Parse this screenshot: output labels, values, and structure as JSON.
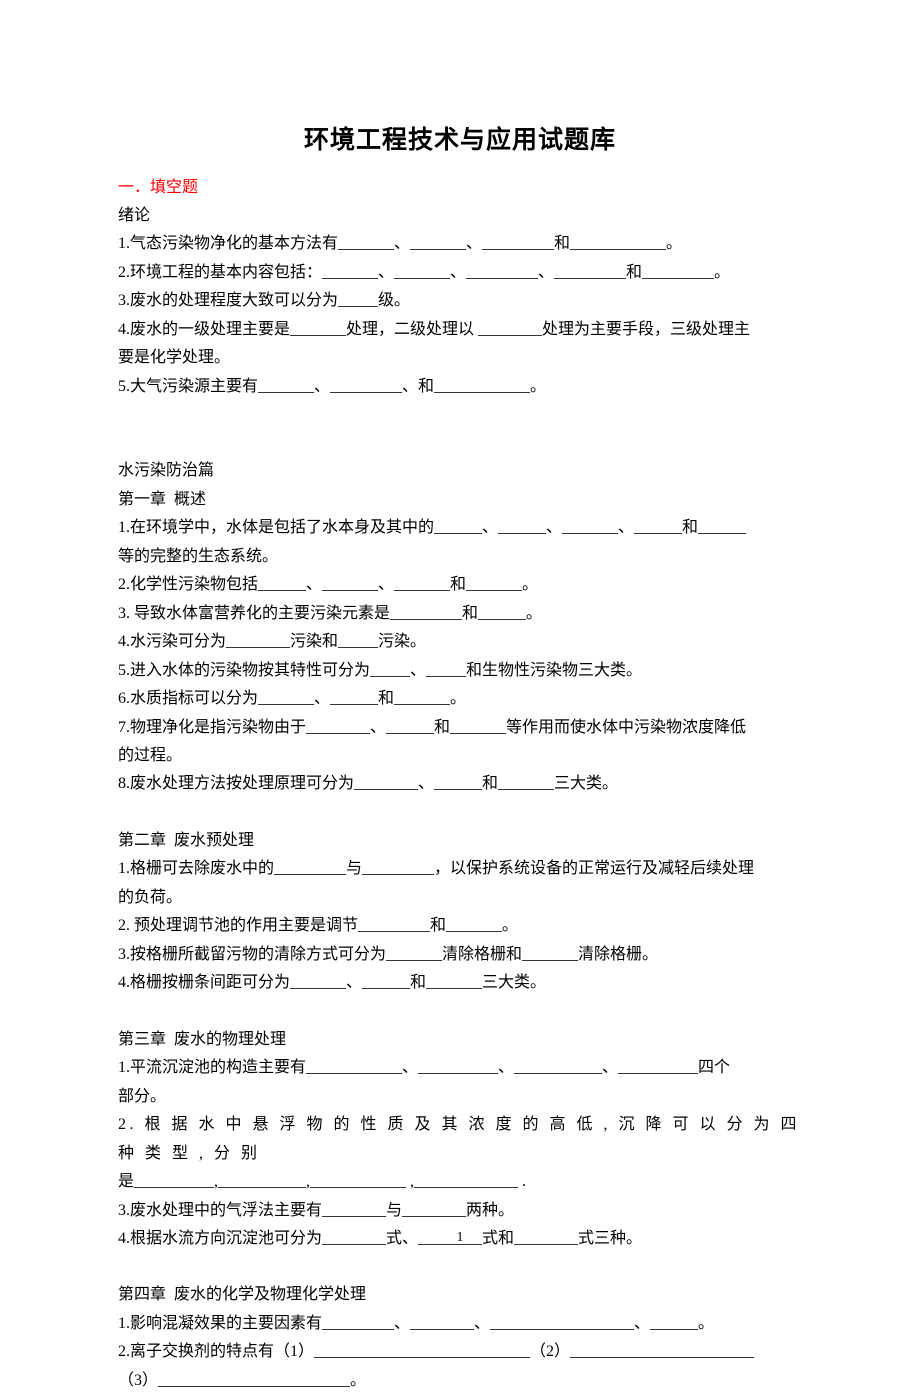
{
  "title": "环境工程技术与应用试题库",
  "section1_label": "一．填空题",
  "intro_heading": "绪论",
  "intro": {
    "q1": "1.气态污染物净化的基本方法有_______、_______、_________和____________。",
    "q2": "2.环境工程的基本内容包括：_______、_______、_________、_________和_________。",
    "q3": "3.废水的处理程度大致可以分为_____级。",
    "q4a": "4.废水的一级处理主要是_______处理，二级处理以 ________处理为主要手段，三级处理主",
    "q4b": "要是化学处理。",
    "q5": "5.大气污染源主要有_______、_________、和____________。"
  },
  "water_heading": "水污染防治篇",
  "ch1_heading": "第一章  概述",
  "ch1": {
    "q1a": "1.在环境学中，水体是包括了水本身及其中的______、______、_______、______和______",
    "q1b": "等的完整的生态系统。",
    "q2": "2.化学性污染物包括______、_______、_______和_______。",
    "q3": "3. 导致水体富营养化的主要污染元素是_________和______。",
    "q4": "4.水污染可分为________污染和_____污染。",
    "q5": "5.进入水体的污染物按其特性可分为_____、_____和生物性污染物三大类。",
    "q6": "6.水质指标可以分为_______、______和_______。",
    "q7a": "7.物理净化是指污染物由于________、______和_______等作用而使水体中污染物浓度降低",
    "q7b": "的过程。",
    "q8": "8.废水处理方法按处理原理可分为________、______和_______三大类。"
  },
  "ch2_heading": "第二章  废水预处理",
  "ch2": {
    "q1a": "1.格栅可去除废水中的_________与_________，以保护系统设备的正常运行及减轻后续处理",
    "q1b": "的负荷。",
    "q2": "2. 预处理调节池的作用主要是调节_________和_______。",
    "q3": "3.按格栅所截留污物的清除方式可分为_______清除格栅和_______清除格栅。",
    "q4": "4.格栅按栅条间距可分为_______、______和_______三大类。"
  },
  "ch3_heading": "第三章  废水的物理处理",
  "ch3": {
    "q1a": "1.平流沉淀池的构造主要有____________、__________、___________、__________四个",
    "q1b": "部分。",
    "q2a": "2. 根 据 水 中 悬 浮 物 的 性 质 及 其 浓 度 的 高 低 , 沉 降 可 以 分 为 四 种 类 型 , 分 别",
    "q2b": "是__________,___________,____________ ,_____________ .",
    "q3": "3.废水处理中的气浮法主要有________与________两种。",
    "q4": "4.根据水流方向沉淀池可分为________式、________式和________式三种。"
  },
  "ch4_heading": "第四章  废水的化学及物理化学处理",
  "ch4": {
    "q1": "1.影响混凝效果的主要因素有_________、________、__________________、______。",
    "q2": "2.离子交换剂的特点有（1）___________________________（2）_______________________",
    "q3": "（3）________________________。"
  },
  "page_number": "1"
}
